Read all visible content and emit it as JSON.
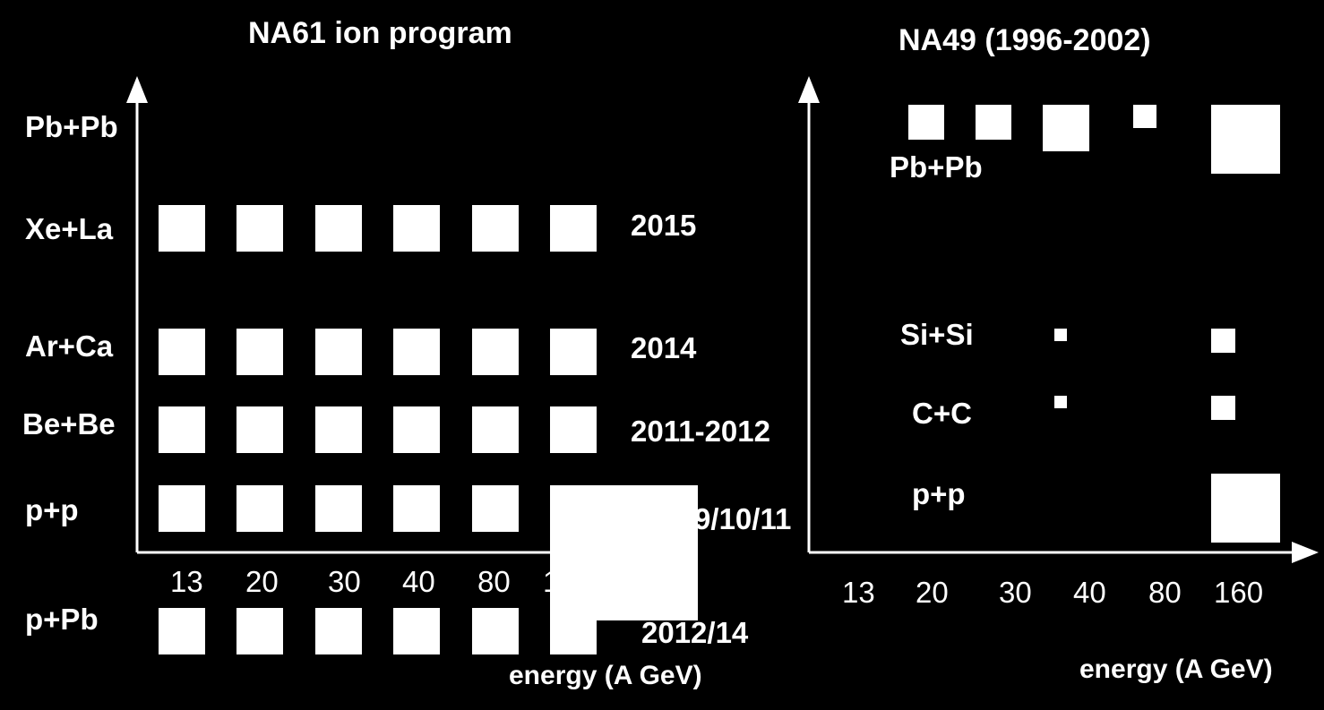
{
  "left": {
    "title": "NA61 ion program",
    "rows": [
      "Pb+Pb",
      "Xe+La",
      "Ar+Ca",
      "Be+Be",
      "p+p",
      "p+Pb"
    ],
    "years": [
      "2015",
      "2014",
      "2011-2012",
      "2009/10/11",
      "2012/14"
    ],
    "ticks": [
      "13",
      "20",
      "30",
      "40",
      "80",
      "158"
    ],
    "xlabel": "energy (A GeV)"
  },
  "right": {
    "title": "NA49 (1996-2002)",
    "rows": [
      "Pb+Pb",
      "Si+Si",
      "C+C",
      "p+p"
    ],
    "ticks": [
      "13",
      "20",
      "30",
      "40",
      "80",
      "160"
    ],
    "xlabel": "energy (A GeV)"
  },
  "colors": {
    "background": "#000000",
    "foreground": "#ffffff"
  }
}
